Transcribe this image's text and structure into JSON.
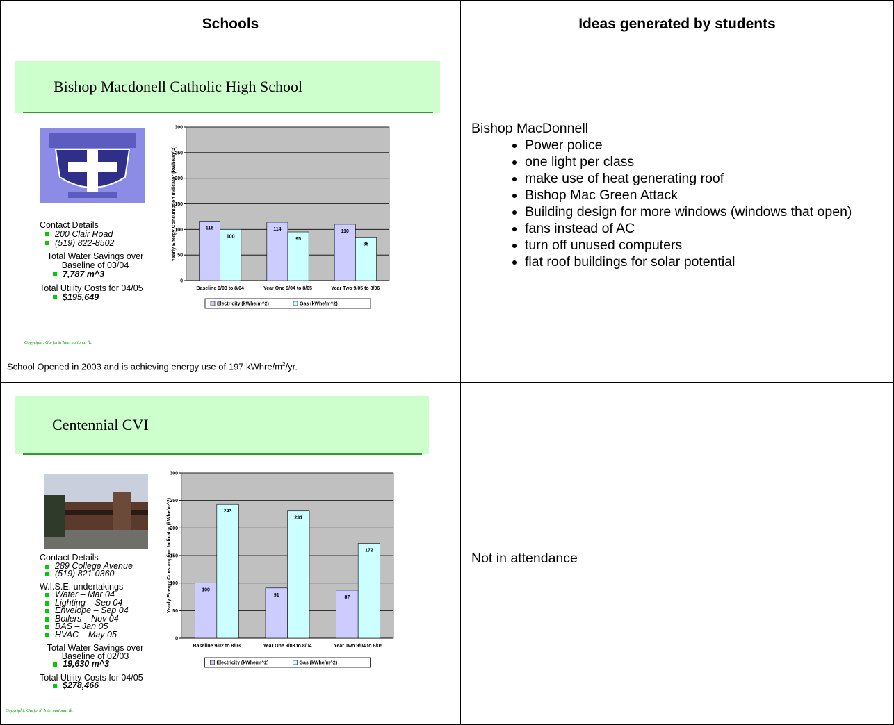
{
  "table": {
    "headers": [
      "Schools",
      "Ideas generated by students"
    ],
    "rows": [
      {
        "school": {
          "name": "Bishop Macdonell Catholic High School",
          "contact_heading": "Contact Details",
          "contact": [
            "200 Clair Road",
            "(519) 822-8502"
          ],
          "water_heading": [
            "Total Water Savings over",
            "Baseline of 03/04"
          ],
          "water_value": "7,787 m^3",
          "cost_heading": "Total Utility Costs for 04/05",
          "cost_value": "$195,649",
          "copyright": "Copyright: Garforth International llc",
          "chart": {
            "type": "bar",
            "y_label": "Yearly Energy Consumption Indicator (kWhe/m^2)",
            "categories": [
              "Baseline 9/03 to 8/04",
              "Year One 9/04 to 8/05",
              "Year Two 9/05 to 8/06"
            ],
            "series": [
              {
                "name": "Electricity (kWhe/m^2)",
                "color": "#ccccff",
                "values": [
                  116,
                  114,
                  110
                ]
              },
              {
                "name": "Gas (kWhe/m^2)",
                "color": "#ccffff",
                "values": [
                  100,
                  95,
                  85
                ]
              }
            ],
            "ylim": [
              0,
              300
            ],
            "yticks": [
              0,
              50,
              100,
              150,
              200,
              250,
              300
            ],
            "grid": true
          },
          "note": [
            "School Opened in 2003 and is achieving energy use of 197 kWhre/m",
            "2",
            "/yr."
          ]
        },
        "ideas": {
          "heading": "Bishop MacDonnell",
          "items": [
            "Power police",
            "one light per class",
            "make use of heat generating roof",
            "Bishop Mac Green Attack",
            "Building design for more windows (windows that open)",
            "fans instead of AC",
            "turn off unused computers",
            "flat roof buildings for solar potential"
          ]
        }
      },
      {
        "school": {
          "name": "Centennial CVI",
          "contact_heading": "Contact Details",
          "contact": [
            "289 College Avenue",
            "(519) 821-0360"
          ],
          "wise_heading": "W.I.S.E. undertakings",
          "wise": [
            "Water – Mar 04",
            "Lighting – Sep 04",
            "Envelope – Sep 04",
            "Boilers – Nov 04",
            "BAS – Jan 05",
            "HVAC – May 05"
          ],
          "water_heading": [
            "Total Water Savings over",
            "Baseline of 02/03"
          ],
          "water_value": "19,630 m^3",
          "cost_heading": "Total Utility Costs for 04/05",
          "cost_value": "$278,466",
          "copyright": "Copyright: Garforth International llc",
          "chart": {
            "type": "bar",
            "y_label": "Yearly Energy Consumption Indicator (kWhe/m^2)",
            "categories": [
              "Baseline 9/02 to 8/03",
              "Year One 9/03 to 8/04",
              "Year Two 9/04 to 8/05"
            ],
            "series": [
              {
                "name": "Electricity (kWhe/m^2)",
                "color": "#ccccff",
                "values": [
                  100,
                  91,
                  87
                ]
              },
              {
                "name": "Gas (kWhe/m^2)",
                "color": "#ccffff",
                "values": [
                  243,
                  231,
                  172
                ]
              }
            ],
            "ylim": [
              0,
              300
            ],
            "yticks": [
              0,
              50,
              100,
              150,
              200,
              250,
              300
            ],
            "grid": true
          }
        },
        "ideas": {
          "text": "Not in attendance"
        }
      }
    ]
  }
}
